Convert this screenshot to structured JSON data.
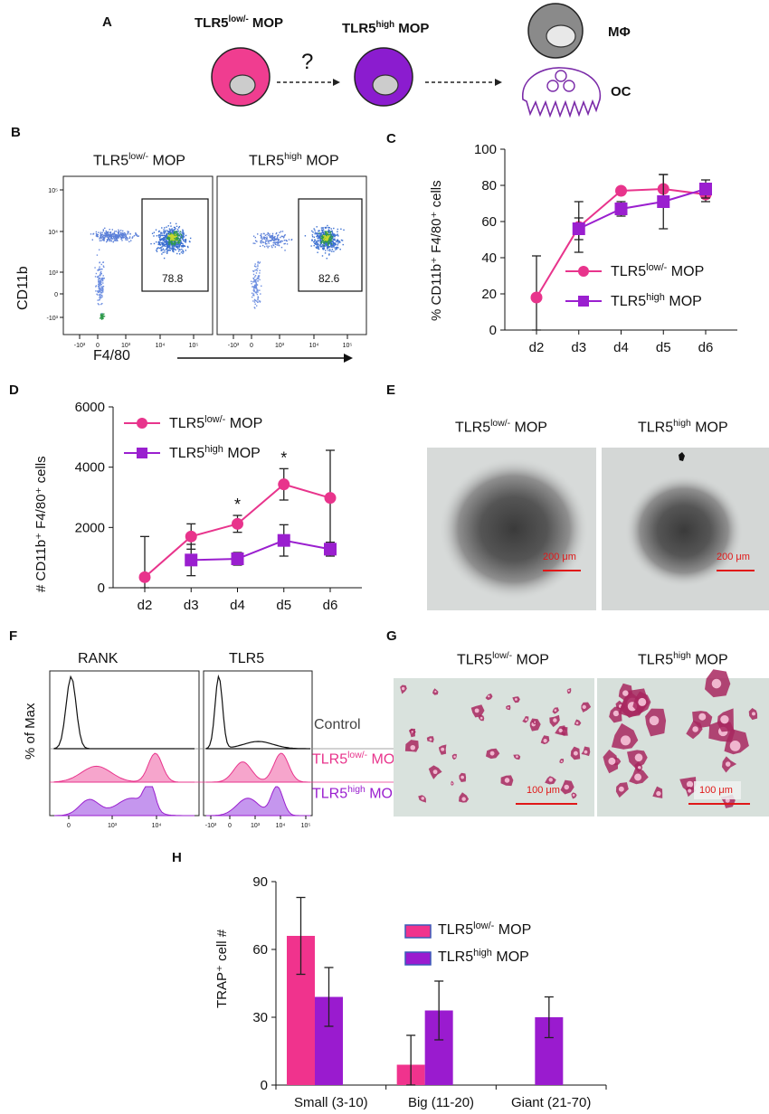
{
  "panels": {
    "A": {
      "label": "A",
      "cell1": "TLR5",
      "cell1_sup": "low/-",
      "cell1_suffix": " MOP",
      "cell2": "TLR5",
      "cell2_sup": "high",
      "cell2_suffix": " MOP",
      "question": "?",
      "macrophage": "MΦ",
      "osteoclast": "OC"
    },
    "B": {
      "label": "B",
      "left_title": "TLR5",
      "left_sup": "low/-",
      "left_suffix": " MOP",
      "right_title": "TLR5",
      "right_sup": "high",
      "right_suffix": " MOP",
      "ylabel": "CD11b",
      "xlabel": "F4/80",
      "gate_left": "78.8",
      "gate_right": "82.6",
      "yticks": [
        "10⁵",
        "10⁴",
        "10³",
        "0",
        "-10³"
      ],
      "xticks": [
        "-10³",
        "0",
        "10³",
        "10⁴",
        "10⁵"
      ]
    },
    "E": {
      "label": "E",
      "left_title": "TLR5",
      "left_sup": "low/-",
      "left_suffix": " MOP",
      "right_title": "TLR5",
      "right_sup": "high",
      "right_suffix": " MOP",
      "scale": "200 μm"
    },
    "F": {
      "label": "F",
      "ylabel": "% of Max",
      "left_title": "RANK",
      "right_title": "TLR5",
      "legend_control": "Control",
      "legend_low": "TLR5",
      "legend_low_sup": "low/-",
      "legend_low_suffix": " MOP",
      "legend_high": "TLR5",
      "legend_high_sup": "high",
      "legend_high_suffix": " MOP",
      "xticks": [
        "0",
        "10³",
        "10⁴"
      ],
      "xticks_right": [
        "-10³",
        "0",
        "10³",
        "10⁴",
        "10⁵"
      ]
    },
    "G": {
      "label": "G",
      "left_title": "TLR5",
      "left_sup": "low/-",
      "left_suffix": " MOP",
      "right_title": "TLR5",
      "right_sup": "high",
      "right_suffix": " MOP",
      "scale": "100 μm"
    }
  },
  "chart_data": [
    {
      "id": "C",
      "label": "C",
      "type": "line",
      "ylabel": "% CD11b⁺ F4/80⁺ cells",
      "categories": [
        "d2",
        "d3",
        "d4",
        "d5",
        "d6"
      ],
      "ylim": [
        0,
        100
      ],
      "yticks": [
        "0",
        "20",
        "40",
        "60",
        "80",
        "100"
      ],
      "series": [
        {
          "name": "TLR5low/- MOP",
          "name_base": "TLR5",
          "name_sup": "low/-",
          "name_suffix": " MOP",
          "marker": "circle",
          "color": "#e8348c",
          "values": [
            18,
            57,
            77,
            78,
            75
          ],
          "err": [
            23,
            14,
            0,
            8,
            4
          ]
        },
        {
          "name": "TLR5high MOP",
          "name_base": "TLR5",
          "name_sup": "high",
          "name_suffix": " MOP",
          "marker": "square",
          "color": "#9a1fcf",
          "values": [
            null,
            56,
            67,
            71,
            78
          ],
          "err": [
            0,
            6,
            4,
            15,
            5
          ]
        }
      ]
    },
    {
      "id": "D",
      "label": "D",
      "type": "line",
      "ylabel": "# CD11b⁺ F4/80⁺ cells",
      "categories": [
        "d2",
        "d3",
        "d4",
        "d5",
        "d6"
      ],
      "ylim": [
        0,
        6000
      ],
      "yticks": [
        "0",
        "2000",
        "4000",
        "6000"
      ],
      "significance": [
        "",
        "",
        "*",
        "*",
        ""
      ],
      "series": [
        {
          "name": "TLR5low/- MOP",
          "name_base": "TLR5",
          "name_sup": "low/-",
          "name_suffix": " MOP",
          "marker": "circle",
          "color": "#e8348c",
          "values": [
            350,
            1700,
            2120,
            3430,
            2980
          ],
          "err": [
            1350,
            420,
            280,
            520,
            1580
          ]
        },
        {
          "name": "TLR5high MOP",
          "name_base": "TLR5",
          "name_sup": "high",
          "name_suffix": " MOP",
          "marker": "square",
          "color": "#9a1fcf",
          "values": [
            null,
            920,
            960,
            1570,
            1280
          ],
          "err": [
            0,
            520,
            210,
            520,
            230
          ]
        }
      ]
    },
    {
      "id": "H",
      "label": "H",
      "type": "bar",
      "ylabel": "TRAP⁺ cell #",
      "categories": [
        "Small (3-10)",
        "Big (11-20)",
        "Giant (21-70)"
      ],
      "ylim": [
        0,
        90
      ],
      "yticks": [
        "0",
        "30",
        "60",
        "90"
      ],
      "series": [
        {
          "name": "TLR5low/- MOP",
          "name_base": "TLR5",
          "name_sup": "low/-",
          "name_suffix": " MOP",
          "color": "#f0338d",
          "values": [
            66,
            9,
            0
          ],
          "err": [
            17,
            13,
            0
          ]
        },
        {
          "name": "TLR5high MOP",
          "name_base": "TLR5",
          "name_sup": "high",
          "name_suffix": " MOP",
          "color": "#9a1bcf",
          "values": [
            39,
            33,
            30
          ],
          "err": [
            13,
            13,
            9
          ]
        }
      ]
    }
  ]
}
